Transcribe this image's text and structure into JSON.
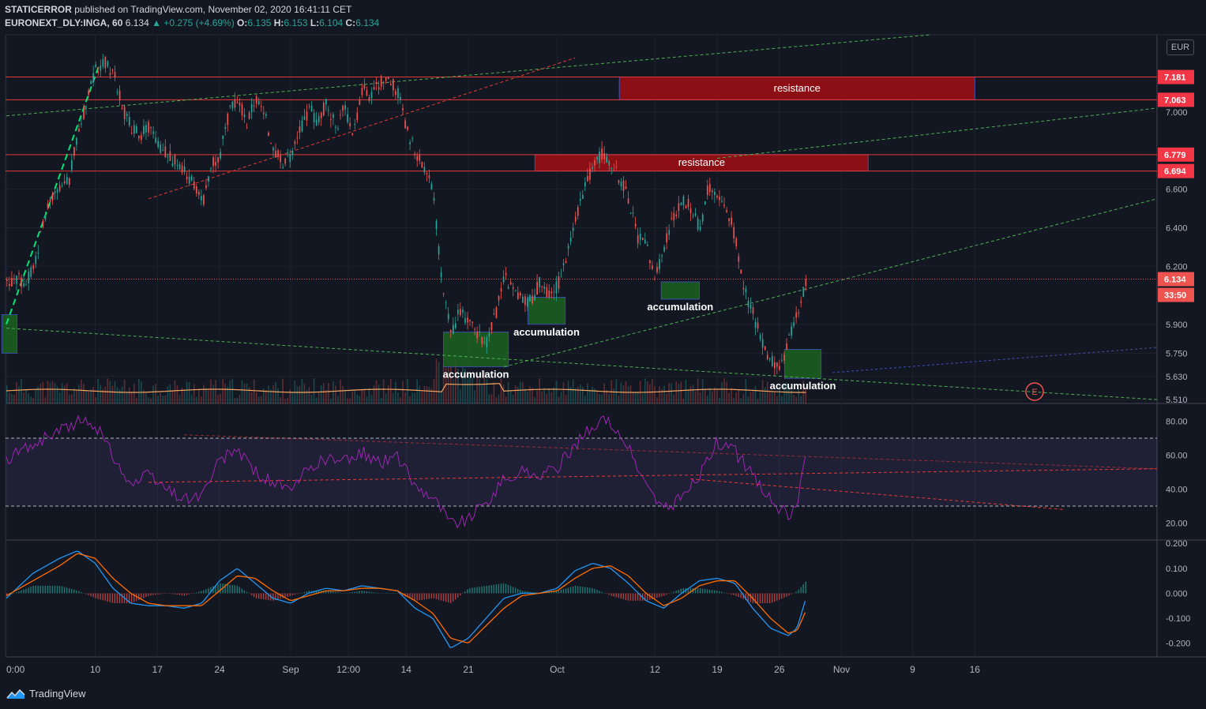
{
  "header": {
    "author": "STATICERROR",
    "published_text": "published on TradingView.com, November 02, 2020 16:41:11 CET",
    "symbol": "EURONEXT_DLY:INGA, 60",
    "last": "6.134",
    "change": "▲ +0.275 (+4.69%)",
    "o_label": "O:",
    "o": "6.135",
    "h_label": "H:",
    "h": "6.153",
    "l_label": "L:",
    "l": "6.104",
    "c_label": "C:",
    "c": "6.134"
  },
  "currency": "EUR",
  "footer": {
    "brand": "TradingView"
  },
  "colors": {
    "background": "#131722",
    "up": "#26a69a",
    "down": "#ef5350",
    "resistance": "#8b0f14",
    "accumulation": "#1b5e20",
    "rsi": "#9c27b0",
    "macd": "#2196f3",
    "signal": "#ff6d00",
    "trend_green": "#4caf50",
    "trend_red": "#e53935"
  },
  "chart_data": [
    {
      "type": "candlestick",
      "panel": "price",
      "y_ticks": [
        5.51,
        5.63,
        5.75,
        5.9,
        6.2,
        6.4,
        6.6,
        7.0
      ],
      "y_tick_labels": [
        "5.510",
        "5.630",
        "5.750",
        "5.900",
        "6.200",
        "6.400",
        "6.600",
        "7.000"
      ],
      "ylim": [
        5.49,
        7.4
      ],
      "x_tick_labels": [
        "0:00",
        "10",
        "17",
        "24",
        "Sep",
        "12:00",
        "14",
        "21",
        "Oct",
        "12",
        "19",
        "26",
        "Nov",
        "9",
        "16"
      ],
      "x_tick_days": [
        0,
        10,
        17,
        24,
        32,
        38.5,
        45,
        52,
        62,
        73,
        80,
        87,
        94,
        102,
        109
      ],
      "close_path": [
        [
          0,
          6.1
        ],
        [
          1,
          6.14
        ],
        [
          2,
          6.12
        ],
        [
          3,
          6.18
        ],
        [
          4,
          6.4
        ],
        [
          5,
          6.55
        ],
        [
          6,
          6.6
        ],
        [
          7,
          6.65
        ],
        [
          8,
          6.9
        ],
        [
          9,
          7.05
        ],
        [
          10,
          7.22
        ],
        [
          11,
          7.26
        ],
        [
          12,
          7.2
        ],
        [
          13,
          7.02
        ],
        [
          14,
          6.92
        ],
        [
          15,
          6.88
        ],
        [
          16,
          6.92
        ],
        [
          17,
          6.82
        ],
        [
          18,
          6.78
        ],
        [
          19,
          6.74
        ],
        [
          20,
          6.7
        ],
        [
          21,
          6.62
        ],
        [
          22,
          6.52
        ],
        [
          23,
          6.72
        ],
        [
          24,
          6.78
        ],
        [
          25,
          7.0
        ],
        [
          26,
          7.05
        ],
        [
          27,
          6.95
        ],
        [
          28,
          7.08
        ],
        [
          29,
          6.98
        ],
        [
          30,
          6.82
        ],
        [
          31,
          6.72
        ],
        [
          32,
          6.78
        ],
        [
          33,
          6.9
        ],
        [
          34,
          7.02
        ],
        [
          35,
          6.95
        ],
        [
          36,
          7.05
        ],
        [
          37,
          6.92
        ],
        [
          38,
          7.02
        ],
        [
          39,
          6.9
        ],
        [
          40,
          7.12
        ],
        [
          41,
          7.08
        ],
        [
          42,
          7.15
        ],
        [
          43,
          7.18
        ],
        [
          44,
          7.1
        ],
        [
          45,
          6.9
        ],
        [
          46,
          6.8
        ],
        [
          47,
          6.68
        ],
        [
          48,
          6.6
        ],
        [
          49,
          6.08
        ],
        [
          50,
          5.85
        ],
        [
          51,
          5.98
        ],
        [
          52,
          5.9
        ],
        [
          53,
          5.85
        ],
        [
          54,
          5.8
        ],
        [
          55,
          5.95
        ],
        [
          56,
          6.15
        ],
        [
          57,
          6.08
        ],
        [
          58,
          6.03
        ],
        [
          59,
          6.02
        ],
        [
          60,
          6.12
        ],
        [
          61,
          6.05
        ],
        [
          62,
          6.1
        ],
        [
          63,
          6.25
        ],
        [
          64,
          6.45
        ],
        [
          65,
          6.6
        ],
        [
          66,
          6.72
        ],
        [
          67,
          6.78
        ],
        [
          68,
          6.74
        ],
        [
          69,
          6.65
        ],
        [
          70,
          6.55
        ],
        [
          71,
          6.35
        ],
        [
          72,
          6.3
        ],
        [
          73,
          6.14
        ],
        [
          74,
          6.3
        ],
        [
          75,
          6.45
        ],
        [
          76,
          6.55
        ],
        [
          77,
          6.5
        ],
        [
          78,
          6.4
        ],
        [
          79,
          6.62
        ],
        [
          80,
          6.58
        ],
        [
          81,
          6.5
        ],
        [
          82,
          6.35
        ],
        [
          83,
          6.08
        ],
        [
          84,
          5.95
        ],
        [
          85,
          5.8
        ],
        [
          86,
          5.72
        ],
        [
          87,
          5.65
        ],
        [
          88,
          5.82
        ],
        [
          89,
          5.95
        ],
        [
          90,
          6.134
        ]
      ],
      "last_price": 6.134,
      "price_labels": [
        {
          "value": 7.181,
          "text": "7.181",
          "color": "#f23645"
        },
        {
          "value": 7.063,
          "text": "7.063",
          "color": "#f23645"
        },
        {
          "value": 6.779,
          "text": "6.779",
          "color": "#f23645"
        },
        {
          "value": 6.694,
          "text": "6.694",
          "color": "#f23645"
        },
        {
          "value": 6.134,
          "text": "6.134",
          "color": "#ef5350"
        }
      ],
      "countdown": "33:50",
      "zones": [
        {
          "kind": "resistance",
          "label": "resistance",
          "day_from": 69,
          "day_to": 109,
          "top": 7.181,
          "bottom": 7.063
        },
        {
          "kind": "resistance",
          "label": "resistance",
          "day_from": 59.5,
          "day_to": 97,
          "top": 6.779,
          "bottom": 6.694
        },
        {
          "kind": "accumulation",
          "label": "",
          "day_from": -0.5,
          "day_to": 1.2,
          "top": 5.95,
          "bottom": 5.75
        },
        {
          "kind": "accumulation",
          "label": "accumulation",
          "day_from": 49.2,
          "day_to": 56.5,
          "top": 5.86,
          "bottom": 5.68
        },
        {
          "kind": "accumulation",
          "label": "accumulation",
          "day_from": 58.7,
          "day_to": 62.9,
          "top": 6.04,
          "bottom": 5.9
        },
        {
          "kind": "accumulation",
          "label": "accumulation",
          "day_from": 73.7,
          "day_to": 78,
          "top": 6.12,
          "bottom": 6.03
        },
        {
          "kind": "accumulation",
          "label": "accumulation",
          "day_from": 87.6,
          "day_to": 91.7,
          "top": 5.77,
          "bottom": 5.62
        }
      ],
      "event_marker": "E"
    },
    {
      "type": "line",
      "panel": "rsi",
      "y_ticks": [
        20,
        40,
        60,
        80
      ],
      "y_tick_labels": [
        "20.00",
        "40.00",
        "60.00",
        "80.00"
      ],
      "ylim": [
        10,
        90
      ],
      "bands": [
        30,
        70
      ],
      "path": [
        [
          0,
          58
        ],
        [
          3,
          66
        ],
        [
          6,
          74
        ],
        [
          8,
          80
        ],
        [
          10,
          78
        ],
        [
          12,
          60
        ],
        [
          14,
          42
        ],
        [
          16,
          48
        ],
        [
          18,
          40
        ],
        [
          20,
          34
        ],
        [
          22,
          36
        ],
        [
          24,
          56
        ],
        [
          26,
          64
        ],
        [
          28,
          50
        ],
        [
          30,
          44
        ],
        [
          32,
          38
        ],
        [
          34,
          52
        ],
        [
          36,
          58
        ],
        [
          38,
          56
        ],
        [
          40,
          62
        ],
        [
          42,
          55
        ],
        [
          44,
          60
        ],
        [
          46,
          42
        ],
        [
          48,
          36
        ],
        [
          50,
          20
        ],
        [
          52,
          22
        ],
        [
          54,
          32
        ],
        [
          56,
          45
        ],
        [
          58,
          50
        ],
        [
          60,
          48
        ],
        [
          62,
          52
        ],
        [
          64,
          66
        ],
        [
          66,
          78
        ],
        [
          68,
          80
        ],
        [
          70,
          64
        ],
        [
          72,
          42
        ],
        [
          74,
          28
        ],
        [
          76,
          35
        ],
        [
          78,
          48
        ],
        [
          80,
          68
        ],
        [
          82,
          62
        ],
        [
          84,
          48
        ],
        [
          86,
          34
        ],
        [
          88,
          24
        ],
        [
          89,
          28
        ],
        [
          90,
          64
        ]
      ]
    },
    {
      "type": "line",
      "panel": "macd",
      "y_ticks": [
        -0.2,
        -0.1,
        0.0,
        0.1,
        0.2
      ],
      "y_tick_labels": [
        "-0.200",
        "-0.100",
        "0.000",
        "0.100",
        "0.200"
      ],
      "ylim": [
        -0.255,
        0.21
      ],
      "macd": [
        [
          0,
          -0.02
        ],
        [
          3,
          0.08
        ],
        [
          6,
          0.14
        ],
        [
          8,
          0.17
        ],
        [
          10,
          0.12
        ],
        [
          12,
          0.02
        ],
        [
          14,
          -0.04
        ],
        [
          16,
          -0.05
        ],
        [
          18,
          -0.05
        ],
        [
          20,
          -0.06
        ],
        [
          22,
          -0.04
        ],
        [
          24,
          0.05
        ],
        [
          26,
          0.1
        ],
        [
          28,
          0.04
        ],
        [
          30,
          -0.02
        ],
        [
          32,
          -0.04
        ],
        [
          34,
          0.0
        ],
        [
          36,
          0.02
        ],
        [
          38,
          0.01
        ],
        [
          40,
          0.03
        ],
        [
          42,
          0.02
        ],
        [
          44,
          0.01
        ],
        [
          46,
          -0.06
        ],
        [
          48,
          -0.1
        ],
        [
          50,
          -0.22
        ],
        [
          52,
          -0.18
        ],
        [
          54,
          -0.1
        ],
        [
          56,
          -0.02
        ],
        [
          58,
          0.0
        ],
        [
          60,
          0.0
        ],
        [
          62,
          0.02
        ],
        [
          64,
          0.09
        ],
        [
          66,
          0.12
        ],
        [
          68,
          0.1
        ],
        [
          70,
          0.04
        ],
        [
          72,
          -0.03
        ],
        [
          74,
          -0.06
        ],
        [
          76,
          0.0
        ],
        [
          78,
          0.05
        ],
        [
          80,
          0.06
        ],
        [
          82,
          0.04
        ],
        [
          84,
          -0.06
        ],
        [
          86,
          -0.14
        ],
        [
          88,
          -0.17
        ],
        [
          89,
          -0.14
        ],
        [
          90,
          -0.02
        ]
      ],
      "signal": [
        [
          0,
          -0.01
        ],
        [
          3,
          0.05
        ],
        [
          6,
          0.11
        ],
        [
          8,
          0.16
        ],
        [
          10,
          0.14
        ],
        [
          12,
          0.06
        ],
        [
          14,
          0.0
        ],
        [
          16,
          -0.04
        ],
        [
          18,
          -0.05
        ],
        [
          20,
          -0.05
        ],
        [
          22,
          -0.05
        ],
        [
          24,
          0.01
        ],
        [
          26,
          0.07
        ],
        [
          28,
          0.06
        ],
        [
          30,
          0.01
        ],
        [
          32,
          -0.03
        ],
        [
          34,
          -0.01
        ],
        [
          36,
          0.01
        ],
        [
          38,
          0.01
        ],
        [
          40,
          0.02
        ],
        [
          42,
          0.02
        ],
        [
          44,
          0.01
        ],
        [
          46,
          -0.03
        ],
        [
          48,
          -0.08
        ],
        [
          50,
          -0.18
        ],
        [
          52,
          -0.2
        ],
        [
          54,
          -0.13
        ],
        [
          56,
          -0.06
        ],
        [
          58,
          -0.01
        ],
        [
          60,
          0.0
        ],
        [
          62,
          0.01
        ],
        [
          64,
          0.06
        ],
        [
          66,
          0.1
        ],
        [
          68,
          0.11
        ],
        [
          70,
          0.07
        ],
        [
          72,
          0.0
        ],
        [
          74,
          -0.05
        ],
        [
          76,
          -0.02
        ],
        [
          78,
          0.03
        ],
        [
          80,
          0.05
        ],
        [
          82,
          0.05
        ],
        [
          84,
          -0.02
        ],
        [
          86,
          -0.1
        ],
        [
          88,
          -0.16
        ],
        [
          89,
          -0.15
        ],
        [
          90,
          -0.07
        ]
      ]
    }
  ]
}
